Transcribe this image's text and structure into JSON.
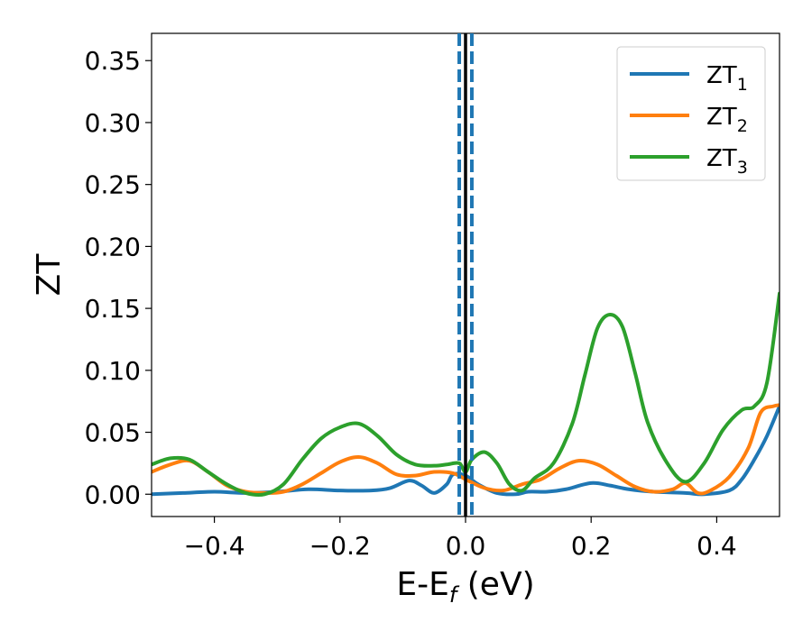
{
  "chart_data": {
    "type": "line",
    "title": "",
    "xlabel": "E-E",
    "xlabel_sub": "f",
    "xlabel_unit": " (eV)",
    "ylabel": "ZT",
    "xlim": [
      -0.5,
      0.5
    ],
    "ylim": [
      -0.018,
      0.372
    ],
    "x_ticks": [
      -0.4,
      -0.2,
      0.0,
      0.2,
      0.4
    ],
    "x_tick_labels": [
      "−0.4",
      "−0.2",
      "0.0",
      "0.2",
      "0.4"
    ],
    "y_ticks": [
      0.0,
      0.05,
      0.1,
      0.15,
      0.2,
      0.25,
      0.3,
      0.35
    ],
    "y_tick_labels": [
      "0.00",
      "0.05",
      "0.10",
      "0.15",
      "0.20",
      "0.25",
      "0.30",
      "0.35"
    ],
    "grid": false,
    "legend": "top-right",
    "vertical_lines": [
      {
        "x": -0.01,
        "color": "#1f77b4",
        "style": "dashed"
      },
      {
        "x": 0.0,
        "color": "#000000",
        "style": "solid"
      },
      {
        "x": 0.01,
        "color": "#1f77b4",
        "style": "dashed"
      }
    ],
    "series": [
      {
        "name": "ZT",
        "name_sub": "1",
        "color": "#1f77b4",
        "x": [
          -0.5,
          -0.45,
          -0.4,
          -0.35,
          -0.3,
          -0.25,
          -0.2,
          -0.15,
          -0.12,
          -0.09,
          -0.07,
          -0.05,
          -0.03,
          -0.02,
          0.0,
          0.02,
          0.05,
          0.08,
          0.1,
          0.13,
          0.16,
          0.2,
          0.23,
          0.26,
          0.3,
          0.35,
          0.38,
          0.42,
          0.44,
          0.46,
          0.48,
          0.5
        ],
        "y": [
          0.0,
          0.001,
          0.002,
          0.001,
          0.002,
          0.004,
          0.003,
          0.003,
          0.005,
          0.011,
          0.007,
          0.001,
          0.008,
          0.016,
          0.015,
          0.008,
          0.001,
          0.0,
          0.002,
          0.002,
          0.004,
          0.009,
          0.007,
          0.004,
          0.002,
          0.001,
          0.0,
          0.003,
          0.012,
          0.028,
          0.047,
          0.071
        ]
      },
      {
        "name": "ZT",
        "name_sub": "2",
        "color": "#ff7f0e",
        "x": [
          -0.5,
          -0.47,
          -0.44,
          -0.41,
          -0.38,
          -0.35,
          -0.32,
          -0.29,
          -0.26,
          -0.23,
          -0.2,
          -0.17,
          -0.14,
          -0.11,
          -0.08,
          -0.05,
          -0.02,
          0.0,
          0.03,
          0.06,
          0.09,
          0.12,
          0.15,
          0.18,
          0.21,
          0.24,
          0.27,
          0.3,
          0.33,
          0.35,
          0.37,
          0.39,
          0.42,
          0.45,
          0.47,
          0.49,
          0.5
        ],
        "y": [
          0.018,
          0.024,
          0.027,
          0.018,
          0.007,
          0.002,
          0.001,
          0.002,
          0.008,
          0.017,
          0.026,
          0.03,
          0.025,
          0.016,
          0.015,
          0.018,
          0.017,
          0.012,
          0.005,
          0.003,
          0.008,
          0.012,
          0.021,
          0.027,
          0.024,
          0.015,
          0.006,
          0.002,
          0.004,
          0.009,
          0.001,
          0.003,
          0.014,
          0.037,
          0.066,
          0.071,
          0.072
        ]
      },
      {
        "name": "ZT",
        "name_sub": "3",
        "color": "#2ca02c",
        "x": [
          -0.5,
          -0.47,
          -0.44,
          -0.41,
          -0.38,
          -0.35,
          -0.32,
          -0.29,
          -0.26,
          -0.23,
          -0.2,
          -0.17,
          -0.14,
          -0.11,
          -0.08,
          -0.05,
          -0.03,
          -0.01,
          0.0,
          0.01,
          0.03,
          0.05,
          0.07,
          0.09,
          0.11,
          0.14,
          0.17,
          0.19,
          0.21,
          0.23,
          0.25,
          0.27,
          0.29,
          0.32,
          0.35,
          0.38,
          0.41,
          0.44,
          0.46,
          0.48,
          0.5
        ],
        "y": [
          0.024,
          0.029,
          0.028,
          0.018,
          0.008,
          0.001,
          0.0,
          0.008,
          0.028,
          0.045,
          0.054,
          0.057,
          0.047,
          0.032,
          0.024,
          0.023,
          0.024,
          0.025,
          0.018,
          0.028,
          0.034,
          0.025,
          0.008,
          0.003,
          0.013,
          0.025,
          0.057,
          0.096,
          0.134,
          0.145,
          0.135,
          0.098,
          0.058,
          0.026,
          0.01,
          0.025,
          0.052,
          0.068,
          0.071,
          0.09,
          0.162
        ]
      }
    ]
  }
}
